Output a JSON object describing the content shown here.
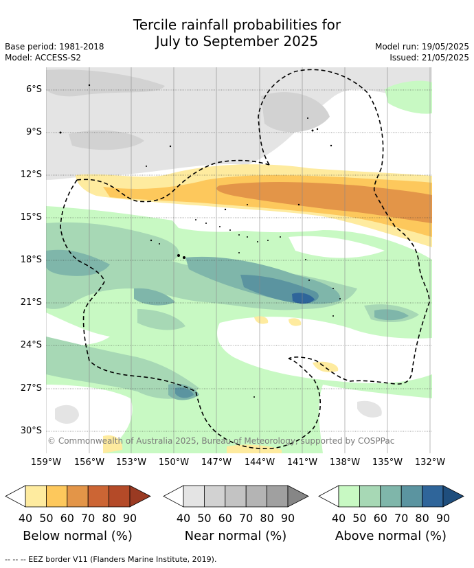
{
  "title": {
    "line1": "Tercile rainfall probabilities for",
    "line2": "July to September 2025"
  },
  "meta": {
    "base_period": "Base period: 1981-2018",
    "model": "Model: ACCESS-S2",
    "model_run": "Model run: 19/05/2025",
    "issued": "Issued: 21/05/2025"
  },
  "axes": {
    "lat_labels": [
      "6°S",
      "9°S",
      "12°S",
      "15°S",
      "18°S",
      "21°S",
      "24°S",
      "27°S",
      "30°S"
    ],
    "lon_labels": [
      "159°W",
      "156°W",
      "153°W",
      "150°W",
      "147°W",
      "144°W",
      "141°W",
      "138°W",
      "135°W",
      "132°W"
    ]
  },
  "copyright": "© Commonwealth of Australia 2025, Bureau of Meteorology, supported by COSPPac",
  "legends": [
    {
      "title": "Below normal (%)",
      "ticks": [
        "40",
        "50",
        "60",
        "70",
        "80",
        "90"
      ],
      "colors": [
        "#ffffff",
        "#feeb9f",
        "#fdc85c",
        "#e39548",
        "#cc6534",
        "#b44a28",
        "#9a3a22"
      ]
    },
    {
      "title": "Near normal (%)",
      "ticks": [
        "40",
        "50",
        "60",
        "70",
        "80",
        "90"
      ],
      "colors": [
        "#ffffff",
        "#e4e4e4",
        "#d2d2d2",
        "#c3c3c3",
        "#b4b4b4",
        "#a0a0a0",
        "#868686"
      ]
    },
    {
      "title": "Above normal (%)",
      "ticks": [
        "40",
        "50",
        "60",
        "70",
        "80",
        "90"
      ],
      "colors": [
        "#ffffff",
        "#c8f9c3",
        "#a7d8b5",
        "#7fb6aa",
        "#5b94a0",
        "#2f659a",
        "#1f4e7d"
      ]
    }
  ],
  "footnote": "--  --  -- EEZ border V11 (Flanders Marine Institute, 2019)."
}
